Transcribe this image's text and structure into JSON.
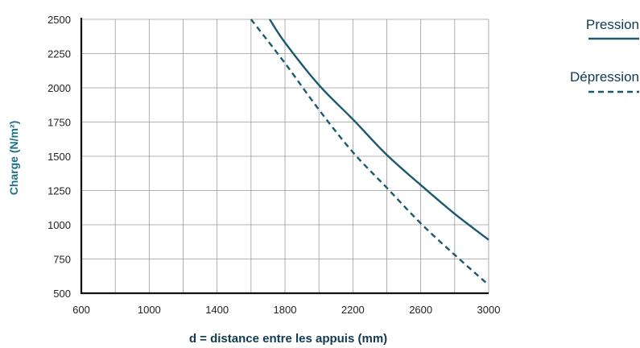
{
  "chart_data": {
    "type": "line",
    "xlabel": "d = distance entre les appuis (mm)",
    "ylabel": "Charge (N/m²)",
    "xlim": [
      600,
      3000
    ],
    "ylim": [
      500,
      2500
    ],
    "x_ticks": [
      "600",
      "1000",
      "1400",
      "1800",
      "2200",
      "2600",
      "3000"
    ],
    "x_tick_values": [
      600,
      1000,
      1400,
      1800,
      2200,
      2600,
      3000
    ],
    "y_ticks": [
      "2500",
      "2250",
      "2000",
      "1750",
      "1500",
      "1250",
      "1000",
      "750",
      "500"
    ],
    "y_tick_values": [
      2500,
      2250,
      2000,
      1750,
      1500,
      1250,
      1000,
      750,
      500
    ],
    "x_gridlines": [
      600,
      800,
      1000,
      1200,
      1400,
      1600,
      1800,
      2000,
      2200,
      2400,
      2600,
      2800,
      3000
    ],
    "grid": true,
    "legend_position": "top-right",
    "series": [
      {
        "name": "Pression",
        "style": "solid",
        "color": "#1a5a6e",
        "x": [
          1710,
          1800,
          2000,
          2200,
          2400,
          2600,
          2800,
          3000
        ],
        "y": [
          2500,
          2330,
          2020,
          1770,
          1510,
          1290,
          1080,
          890
        ]
      },
      {
        "name": "Dépression",
        "style": "dashed",
        "color": "#1a5a6e",
        "x": [
          1600,
          1800,
          2000,
          2200,
          2400,
          2600,
          2800,
          3000
        ],
        "y": [
          2500,
          2180,
          1840,
          1530,
          1270,
          1010,
          780,
          560
        ]
      }
    ]
  }
}
